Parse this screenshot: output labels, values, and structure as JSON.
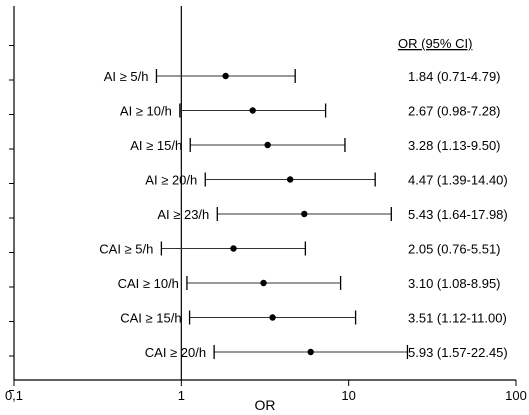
{
  "chart_data": {
    "type": "forest",
    "title": "",
    "xlabel": "OR",
    "ylabel": "",
    "x_scale": "log",
    "xlim": [
      0.1,
      100
    ],
    "x_ticks": [
      {
        "value": 0.1,
        "label": "0,1"
      },
      {
        "value": 1,
        "label": "1"
      },
      {
        "value": 10,
        "label": "10"
      },
      {
        "value": 100,
        "label": "100"
      }
    ],
    "reference_line": 1,
    "column_header": "OR (95% CI)",
    "rows": [
      {
        "label": "AI ≥ 5/h",
        "or": 1.84,
        "lo": 0.71,
        "hi": 4.79,
        "text": "1.84 (0.71-4.79)"
      },
      {
        "label": "AI ≥ 10/h",
        "or": 2.67,
        "lo": 0.98,
        "hi": 7.28,
        "text": "2.67 (0.98-7.28)"
      },
      {
        "label": "AI ≥ 15/h",
        "or": 3.28,
        "lo": 1.13,
        "hi": 9.5,
        "text": "3.28 (1.13-9.50)"
      },
      {
        "label": "AI ≥ 20/h",
        "or": 4.47,
        "lo": 1.39,
        "hi": 14.4,
        "text": "4.47 (1.39-14.40)"
      },
      {
        "label": "AI ≥ 23/h",
        "or": 5.43,
        "lo": 1.64,
        "hi": 17.98,
        "text": "5.43 (1.64-17.98)"
      },
      {
        "label": "CAI ≥ 5/h",
        "or": 2.05,
        "lo": 0.76,
        "hi": 5.51,
        "text": "2.05 (0.76-5.51)"
      },
      {
        "label": "CAI ≥ 10/h",
        "or": 3.1,
        "lo": 1.08,
        "hi": 8.95,
        "text": "3.10 (1.08-8.95)"
      },
      {
        "label": "CAI ≥ 15/h",
        "or": 3.51,
        "lo": 1.12,
        "hi": 11.0,
        "text": "3.51 (1.12-11.00)"
      },
      {
        "label": "CAI ≥ 20/h",
        "or": 5.93,
        "lo": 1.57,
        "hi": 22.45,
        "text": "5.93 (1.57-22.45)"
      }
    ]
  }
}
